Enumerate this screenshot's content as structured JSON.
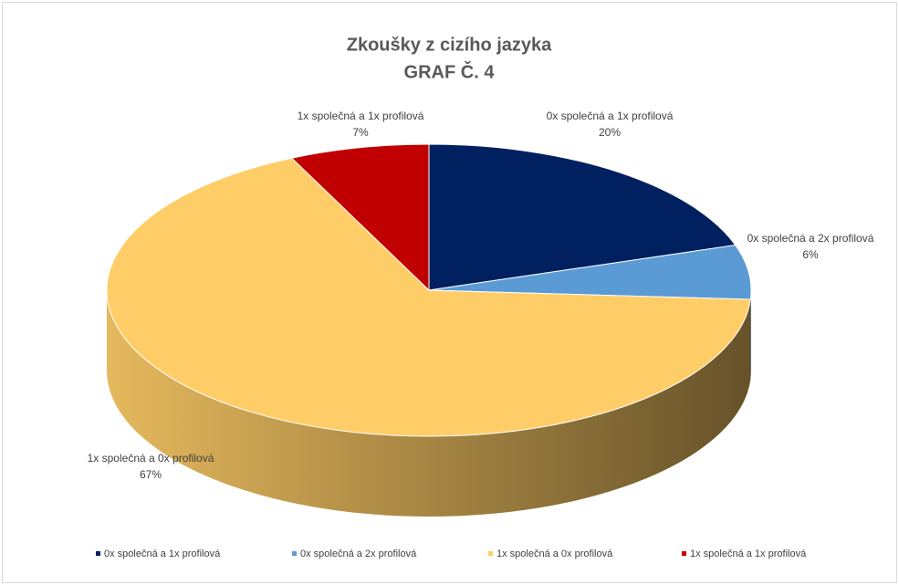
{
  "chart_data": {
    "type": "pie3d",
    "title": "Zkoušky z cizího jazyka",
    "subtitle": "GRAF Č. 4",
    "categories": [
      "0x společná a 1x profilová",
      "0x společná a 2x profilová",
      "1x společná a 0x profilová",
      "1x společná a 1x profilová"
    ],
    "values": [
      20,
      6,
      67,
      7
    ],
    "value_labels": [
      "20%",
      "6%",
      "67%",
      "7%"
    ],
    "colors": [
      "#002060",
      "#5b9bd5",
      "#ffcd67",
      "#c00000"
    ],
    "legend": "bottom"
  }
}
